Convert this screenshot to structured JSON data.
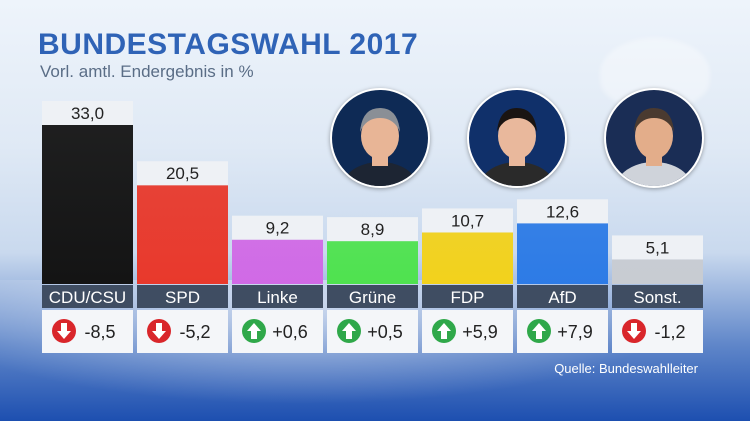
{
  "header": {
    "title": "BUNDESTAGSWAHL 2017",
    "subtitle": "Vorl. amtl. Endergebnis in %"
  },
  "source": "Quelle: Bundeswahlleiter",
  "portraits": [
    {
      "name": "portrait-1",
      "bg": "#0e2a55",
      "skin": "#e8b596",
      "hair": "#8a8f96",
      "shirt": "#1d2533"
    },
    {
      "name": "portrait-2",
      "bg": "#10306a",
      "skin": "#e9b89c",
      "hair": "#1a1412",
      "shirt": "#2a2a2a"
    },
    {
      "name": "portrait-3",
      "bg": "#1a2d55",
      "skin": "#e3ad8a",
      "hair": "#4a3a30",
      "shirt": "#cfd3da"
    }
  ],
  "chart_data": {
    "type": "bar",
    "title": "BUNDESTAGSWAHL 2017",
    "subtitle": "Vorl. amtl. Endergebnis in %",
    "ylim": [
      0,
      33
    ],
    "categories": [
      "CDU/CSU",
      "SPD",
      "Linke",
      "Grüne",
      "FDP",
      "AfD",
      "Sonst."
    ],
    "values": [
      33.0,
      20.5,
      9.2,
      8.9,
      10.7,
      12.6,
      5.1
    ],
    "value_labels": [
      "33,0",
      "20,5",
      "9,2",
      "8,9",
      "10,7",
      "12,6",
      "5,1"
    ],
    "changes": [
      -8.5,
      -5.2,
      0.6,
      0.5,
      5.9,
      7.9,
      -1.2
    ],
    "change_labels": [
      "-8,5",
      "-5,2",
      "+0,6",
      "+0,5",
      "+5,9",
      "+7,9",
      "-1,2"
    ],
    "colors": [
      "#141414",
      "#e8392c",
      "#d16ae6",
      "#4fe24f",
      "#f2d21c",
      "#2d7be6",
      "#c8ccd2"
    ],
    "up_color": "#2fa84a",
    "down_color": "#d9262b"
  }
}
